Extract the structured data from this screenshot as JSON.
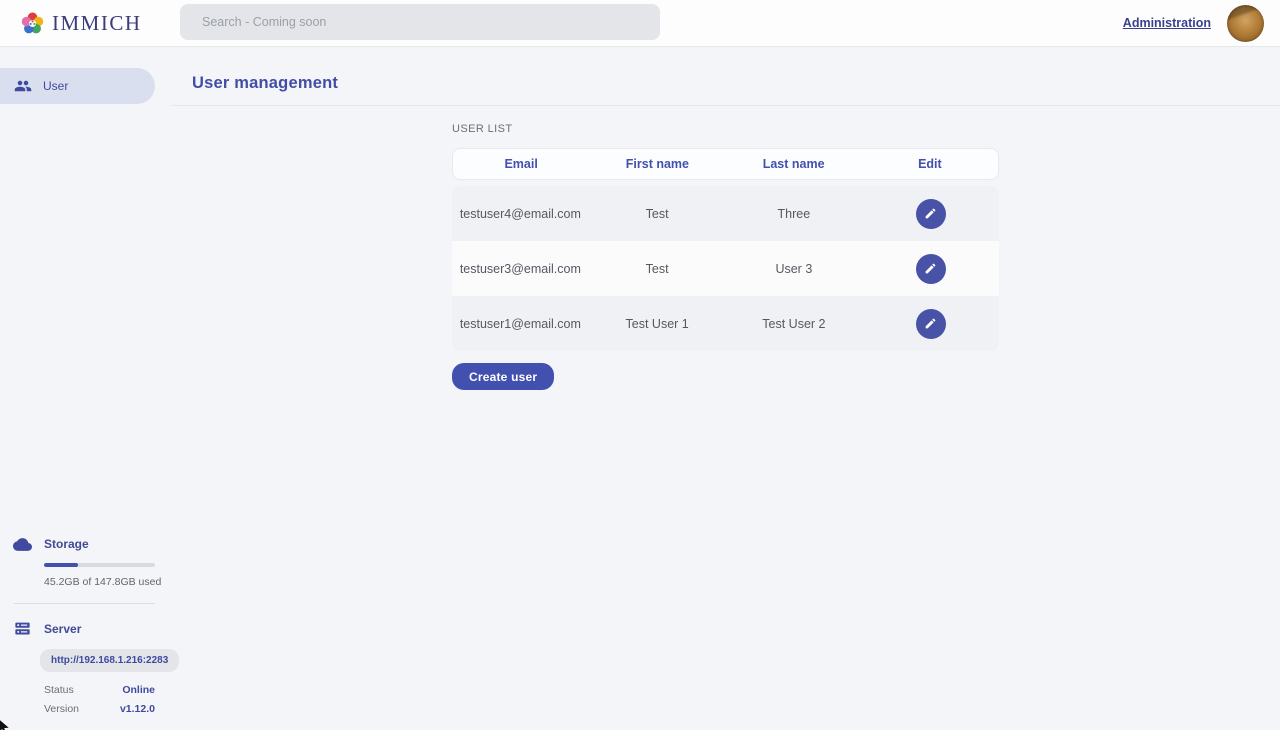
{
  "header": {
    "app_name": "IMMICH",
    "search_placeholder": "Search - Coming soon",
    "admin_link": "Administration"
  },
  "sidebar": {
    "items": [
      {
        "label": "User"
      }
    ],
    "storage": {
      "title": "Storage",
      "usage_text": "45.2GB of 147.8GB used",
      "percent_used": 30.6
    },
    "server": {
      "title": "Server",
      "url": "http://192.168.1.216:2283",
      "rows": [
        {
          "label": "Status",
          "value": "Online"
        },
        {
          "label": "Version",
          "value": "v1.12.0"
        }
      ]
    }
  },
  "main": {
    "title": "User management",
    "section_label": "USER LIST",
    "table": {
      "columns": [
        "Email",
        "First name",
        "Last name",
        "Edit"
      ],
      "rows": [
        {
          "email": "testuser4@email.com",
          "first_name": "Test",
          "last_name": "Three"
        },
        {
          "email": "testuser3@email.com",
          "first_name": "Test",
          "last_name": "User 3"
        },
        {
          "email": "testuser1@email.com",
          "first_name": "Test User 1",
          "last_name": "Test User 2"
        }
      ]
    },
    "create_button": "Create user"
  },
  "colors": {
    "primary": "#4250af",
    "edit_button": "#4852a6",
    "sidebar_active_bg": "#d9dfee",
    "status_online": "#3f4a9e"
  }
}
